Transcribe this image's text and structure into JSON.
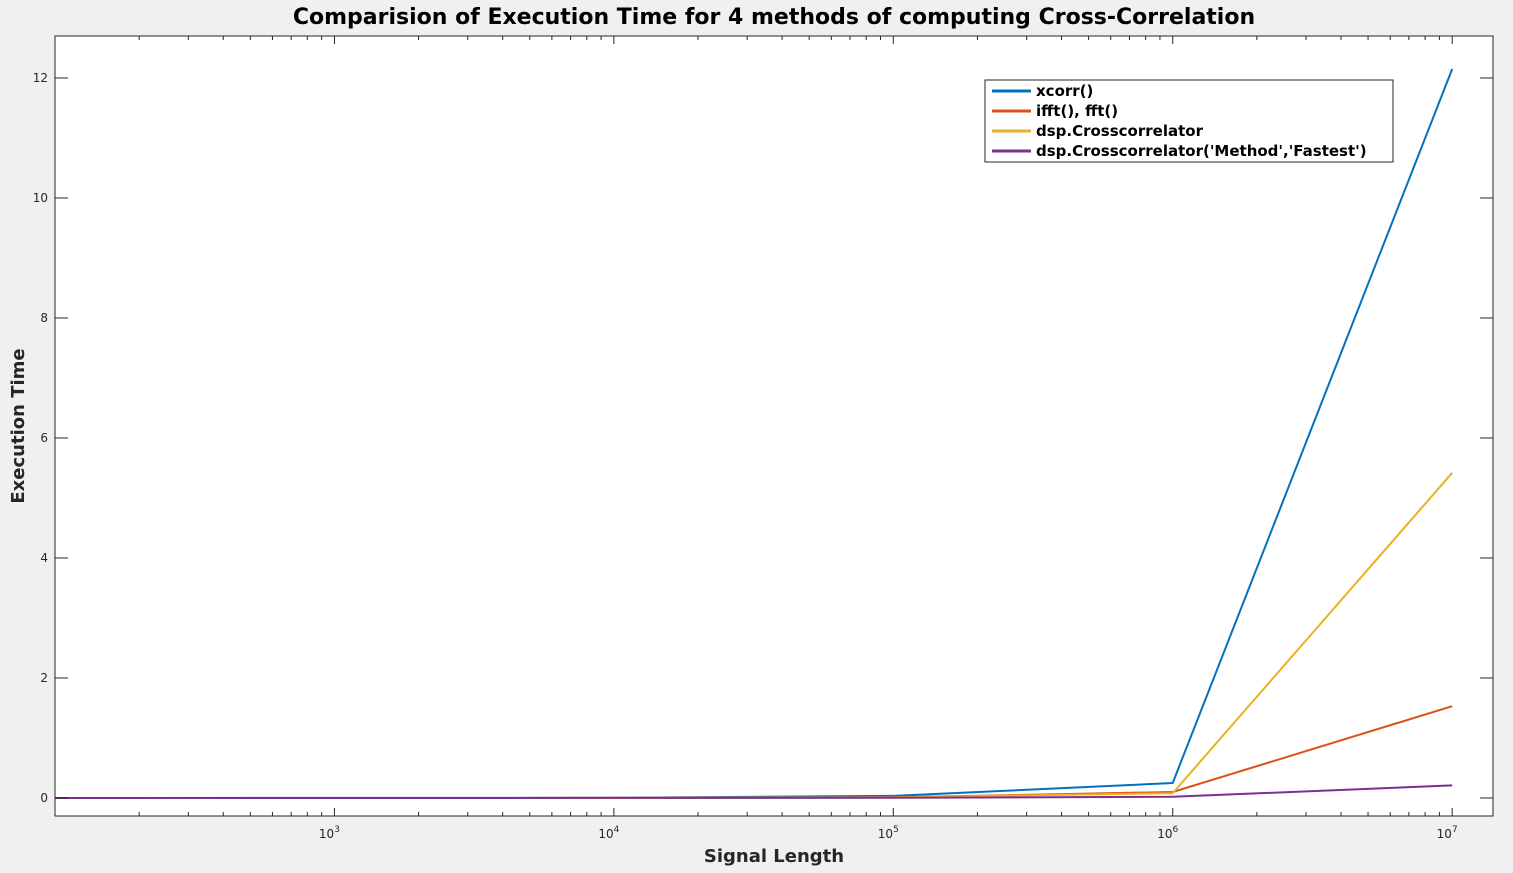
{
  "chart_data": {
    "type": "line",
    "title": "Comparision of Execution Time for 4 methods of computing Cross-Correlation",
    "xlabel": "Signal Length",
    "ylabel": "Execution Time",
    "xscale": "log",
    "xlim": [
      100,
      14000000
    ],
    "ylim": [
      -0.3,
      12.7
    ],
    "x_ticks": [
      1000,
      10000,
      100000,
      1000000,
      10000000
    ],
    "x_tick_labels": [
      {
        "base": "10",
        "exp": "3"
      },
      {
        "base": "10",
        "exp": "4"
      },
      {
        "base": "10",
        "exp": "5"
      },
      {
        "base": "10",
        "exp": "6"
      },
      {
        "base": "10",
        "exp": "7"
      }
    ],
    "y_ticks": [
      0,
      2,
      4,
      6,
      8,
      10,
      12
    ],
    "y_tick_labels": [
      "0",
      "2",
      "4",
      "6",
      "8",
      "10",
      "12"
    ],
    "grid": false,
    "legend_position": "top-right",
    "x": [
      100,
      1000,
      10000,
      100000,
      1000000,
      10000000
    ],
    "series": [
      {
        "name": "xcorr()",
        "color": "#0072bd",
        "values": [
          0.0005,
          0.001,
          0.004,
          0.035,
          0.25,
          12.15
        ]
      },
      {
        "name": "ifft(), fft()",
        "color": "#d95319",
        "values": [
          0.0003,
          0.0005,
          0.002,
          0.012,
          0.1,
          1.53
        ]
      },
      {
        "name": "dsp.Crosscorrelator",
        "color": "#edb120",
        "values": [
          0.0003,
          0.0005,
          0.002,
          0.01,
          0.08,
          5.42
        ]
      },
      {
        "name": "dsp.Crosscorrelator('Method','Fastest')",
        "color": "#7e2f8e",
        "values": [
          0.0002,
          0.0003,
          0.001,
          0.004,
          0.02,
          0.21
        ]
      }
    ]
  }
}
